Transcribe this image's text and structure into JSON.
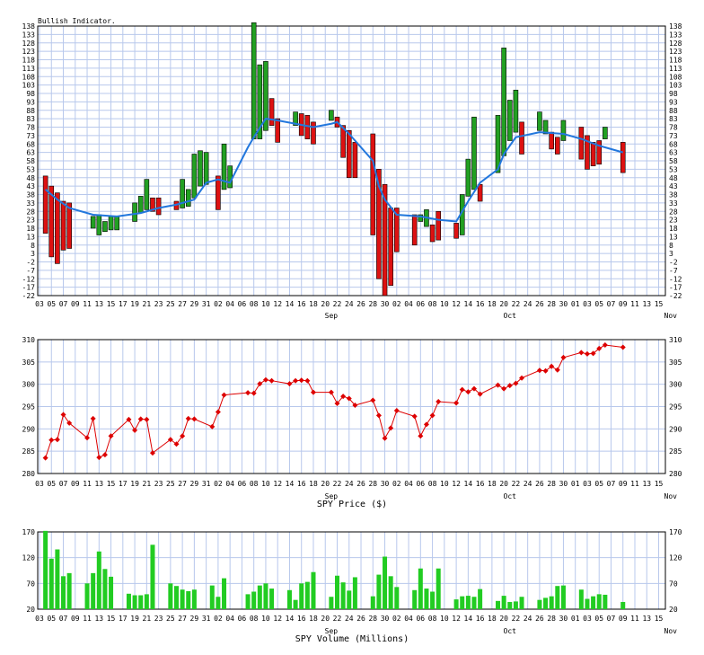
{
  "colors": {
    "up_bar": "#22a022",
    "down_bar": "#dd1111",
    "ma_line": "#2277dd",
    "price_line": "#dd0000",
    "volume_bar": "#22cc22",
    "grid": "#b8c8ec"
  },
  "chart_data": [
    {
      "type": "bar",
      "title": "Bullish Indicator.",
      "ylim": [
        -22,
        138
      ],
      "y_ticks": [
        138,
        133,
        128,
        123,
        118,
        113,
        108,
        103,
        98,
        93,
        88,
        83,
        78,
        73,
        68,
        63,
        58,
        53,
        48,
        43,
        38,
        33,
        28,
        23,
        18,
        13,
        8,
        3,
        -2,
        -7,
        -12,
        -17,
        -22
      ],
      "day_ticks": [
        "03",
        "05",
        "07",
        "09",
        "11",
        "13",
        "15",
        "17",
        "19",
        "21",
        "23",
        "25",
        "27",
        "29",
        "31",
        "02",
        "04",
        "06",
        "08",
        "10",
        "12",
        "14",
        "16",
        "18",
        "20",
        "22",
        "24",
        "26",
        "28",
        "30",
        "02",
        "04",
        "06",
        "08",
        "10",
        "12",
        "14",
        "16",
        "18",
        "20",
        "22",
        "24",
        "26",
        "28",
        "30",
        "01",
        "03",
        "05",
        "07",
        "09",
        "11",
        "13",
        "15"
      ],
      "month_labels": [
        "Sep",
        "Oct",
        "Nov"
      ],
      "bars": [
        {
          "x": 1,
          "o": 49,
          "c": 15
        },
        {
          "x": 2,
          "o": 43,
          "c": 1
        },
        {
          "x": 3,
          "o": 39,
          "c": -3
        },
        {
          "x": 4,
          "o": 34,
          "c": 5
        },
        {
          "x": 5,
          "o": 33,
          "c": 6
        },
        {
          "x": 9,
          "o": 18,
          "c": 25
        },
        {
          "x": 10,
          "o": 14,
          "c": 26
        },
        {
          "x": 11,
          "o": 16,
          "c": 22
        },
        {
          "x": 12,
          "o": 17,
          "c": 25
        },
        {
          "x": 13,
          "o": 17,
          "c": 25
        },
        {
          "x": 16,
          "o": 22,
          "c": 33
        },
        {
          "x": 17,
          "o": 27,
          "c": 37
        },
        {
          "x": 18,
          "o": 29,
          "c": 47
        },
        {
          "x": 19,
          "o": 36,
          "c": 28
        },
        {
          "x": 20,
          "o": 36,
          "c": 26
        },
        {
          "x": 23,
          "o": 34,
          "c": 29
        },
        {
          "x": 24,
          "o": 30,
          "c": 47
        },
        {
          "x": 25,
          "o": 31,
          "c": 41
        },
        {
          "x": 26,
          "o": 36,
          "c": 62
        },
        {
          "x": 27,
          "o": 43,
          "c": 64
        },
        {
          "x": 28,
          "o": 44,
          "c": 63
        },
        {
          "x": 30,
          "o": 49,
          "c": 29
        },
        {
          "x": 31,
          "o": 41,
          "c": 68
        },
        {
          "x": 32,
          "o": 42,
          "c": 55
        },
        {
          "x": 36,
          "o": 71,
          "c": 140
        },
        {
          "x": 37,
          "o": 71,
          "c": 115
        },
        {
          "x": 38,
          "o": 76,
          "c": 117
        },
        {
          "x": 39,
          "o": 95,
          "c": 79
        },
        {
          "x": 40,
          "o": 83,
          "c": 69
        },
        {
          "x": 43,
          "o": 79,
          "c": 87
        },
        {
          "x": 44,
          "o": 86,
          "c": 73
        },
        {
          "x": 45,
          "o": 85,
          "c": 71
        },
        {
          "x": 46,
          "o": 81,
          "c": 68
        },
        {
          "x": 49,
          "o": 82,
          "c": 88
        },
        {
          "x": 50,
          "o": 84,
          "c": 78
        },
        {
          "x": 51,
          "o": 79,
          "c": 60
        },
        {
          "x": 52,
          "o": 76,
          "c": 48
        },
        {
          "x": 53,
          "o": 69,
          "c": 48
        },
        {
          "x": 56,
          "o": 74,
          "c": 14
        },
        {
          "x": 57,
          "o": 53,
          "c": -12
        },
        {
          "x": 58,
          "o": 44,
          "c": -22
        },
        {
          "x": 59,
          "o": 30,
          "c": -16
        },
        {
          "x": 60,
          "o": 30,
          "c": 4
        },
        {
          "x": 63,
          "o": 26,
          "c": 8
        },
        {
          "x": 64,
          "o": 22,
          "c": 26
        },
        {
          "x": 65,
          "o": 19,
          "c": 29
        },
        {
          "x": 66,
          "o": 20,
          "c": 10
        },
        {
          "x": 67,
          "o": 28,
          "c": 11
        },
        {
          "x": 70,
          "o": 21,
          "c": 12
        },
        {
          "x": 71,
          "o": 14,
          "c": 38
        },
        {
          "x": 72,
          "o": 37,
          "c": 59
        },
        {
          "x": 73,
          "o": 41,
          "c": 84
        },
        {
          "x": 74,
          "o": 44,
          "c": 34
        },
        {
          "x": 77,
          "o": 51,
          "c": 85
        },
        {
          "x": 78,
          "o": 61,
          "c": 125
        },
        {
          "x": 79,
          "o": 70,
          "c": 94
        },
        {
          "x": 80,
          "o": 75,
          "c": 100
        },
        {
          "x": 81,
          "o": 81,
          "c": 62
        },
        {
          "x": 84,
          "o": 76,
          "c": 87
        },
        {
          "x": 85,
          "o": 74,
          "c": 82
        },
        {
          "x": 86,
          "o": 75,
          "c": 65
        },
        {
          "x": 87,
          "o": 72,
          "c": 62
        },
        {
          "x": 88,
          "o": 70,
          "c": 82
        },
        {
          "x": 91,
          "o": 78,
          "c": 59
        },
        {
          "x": 92,
          "o": 73,
          "c": 53
        },
        {
          "x": 93,
          "o": 69,
          "c": 55
        },
        {
          "x": 94,
          "o": 70,
          "c": 56
        },
        {
          "x": 95,
          "o": 71,
          "c": 78
        },
        {
          "x": 98,
          "o": 69,
          "c": 51
        }
      ],
      "ma_line": [
        {
          "x": 1,
          "y": 41
        },
        {
          "x": 3,
          "y": 35
        },
        {
          "x": 5,
          "y": 30
        },
        {
          "x": 9,
          "y": 26
        },
        {
          "x": 13,
          "y": 25
        },
        {
          "x": 17,
          "y": 27
        },
        {
          "x": 20,
          "y": 30
        },
        {
          "x": 23,
          "y": 32
        },
        {
          "x": 26,
          "y": 35
        },
        {
          "x": 28,
          "y": 45
        },
        {
          "x": 30,
          "y": 47
        },
        {
          "x": 32,
          "y": 45
        },
        {
          "x": 35,
          "y": 66
        },
        {
          "x": 36,
          "y": 72
        },
        {
          "x": 38,
          "y": 83
        },
        {
          "x": 40,
          "y": 82
        },
        {
          "x": 43,
          "y": 80
        },
        {
          "x": 46,
          "y": 78
        },
        {
          "x": 49,
          "y": 80
        },
        {
          "x": 50,
          "y": 81
        },
        {
          "x": 52,
          "y": 74
        },
        {
          "x": 56,
          "y": 58
        },
        {
          "x": 57,
          "y": 43
        },
        {
          "x": 58,
          "y": 35
        },
        {
          "x": 60,
          "y": 26
        },
        {
          "x": 64,
          "y": 25
        },
        {
          "x": 67,
          "y": 23
        },
        {
          "x": 70,
          "y": 22
        },
        {
          "x": 72,
          "y": 34
        },
        {
          "x": 74,
          "y": 45
        },
        {
          "x": 77,
          "y": 53
        },
        {
          "x": 78,
          "y": 62
        },
        {
          "x": 80,
          "y": 72
        },
        {
          "x": 84,
          "y": 75
        },
        {
          "x": 88,
          "y": 74
        },
        {
          "x": 91,
          "y": 71
        },
        {
          "x": 94,
          "y": 67
        },
        {
          "x": 98,
          "y": 63
        }
      ]
    },
    {
      "type": "line",
      "title": "SPY Price ($)",
      "ylim": [
        280,
        310
      ],
      "y_ticks": [
        310,
        305,
        300,
        295,
        290,
        285,
        280
      ],
      "day_ticks": [
        "03",
        "05",
        "07",
        "09",
        "11",
        "13",
        "15",
        "17",
        "19",
        "21",
        "23",
        "25",
        "27",
        "29",
        "31",
        "02",
        "04",
        "06",
        "08",
        "10",
        "12",
        "14",
        "16",
        "18",
        "20",
        "22",
        "24",
        "26",
        "28",
        "30",
        "02",
        "04",
        "06",
        "08",
        "10",
        "12",
        "14",
        "16",
        "18",
        "20",
        "22",
        "24",
        "26",
        "28",
        "30",
        "01",
        "03",
        "05",
        "07",
        "09",
        "11",
        "13",
        "15"
      ],
      "month_labels": [
        "Sep",
        "Oct",
        "Nov"
      ],
      "points": [
        {
          "x": 1,
          "y": 283.5
        },
        {
          "x": 2,
          "y": 287.5
        },
        {
          "x": 3,
          "y": 287.6
        },
        {
          "x": 4,
          "y": 293.2
        },
        {
          "x": 5,
          "y": 291.3
        },
        {
          "x": 8,
          "y": 288.0
        },
        {
          "x": 9,
          "y": 292.3
        },
        {
          "x": 10,
          "y": 283.6
        },
        {
          "x": 11,
          "y": 284.2
        },
        {
          "x": 12,
          "y": 288.4
        },
        {
          "x": 15,
          "y": 292.1
        },
        {
          "x": 16,
          "y": 289.7
        },
        {
          "x": 17,
          "y": 292.2
        },
        {
          "x": 18,
          "y": 292.1
        },
        {
          "x": 19,
          "y": 284.6
        },
        {
          "x": 22,
          "y": 287.6
        },
        {
          "x": 23,
          "y": 286.6
        },
        {
          "x": 24,
          "y": 288.4
        },
        {
          "x": 25,
          "y": 292.3
        },
        {
          "x": 26,
          "y": 292.2
        },
        {
          "x": 29,
          "y": 290.5
        },
        {
          "x": 30,
          "y": 293.8
        },
        {
          "x": 31,
          "y": 297.6
        },
        {
          "x": 35,
          "y": 298.1
        },
        {
          "x": 36,
          "y": 298.0
        },
        {
          "x": 37,
          "y": 300.1
        },
        {
          "x": 38,
          "y": 301.0
        },
        {
          "x": 39,
          "y": 300.8
        },
        {
          "x": 42,
          "y": 300.1
        },
        {
          "x": 43,
          "y": 300.8
        },
        {
          "x": 44,
          "y": 300.9
        },
        {
          "x": 45,
          "y": 300.8
        },
        {
          "x": 46,
          "y": 298.2
        },
        {
          "x": 49,
          "y": 298.2
        },
        {
          "x": 50,
          "y": 295.7
        },
        {
          "x": 51,
          "y": 297.3
        },
        {
          "x": 52,
          "y": 296.8
        },
        {
          "x": 53,
          "y": 295.3
        },
        {
          "x": 56,
          "y": 296.4
        },
        {
          "x": 57,
          "y": 293.0
        },
        {
          "x": 58,
          "y": 287.9
        },
        {
          "x": 59,
          "y": 290.2
        },
        {
          "x": 60,
          "y": 294.1
        },
        {
          "x": 63,
          "y": 292.8
        },
        {
          "x": 64,
          "y": 288.4
        },
        {
          "x": 65,
          "y": 291.0
        },
        {
          "x": 66,
          "y": 293.0
        },
        {
          "x": 67,
          "y": 296.1
        },
        {
          "x": 70,
          "y": 295.8
        },
        {
          "x": 71,
          "y": 298.8
        },
        {
          "x": 72,
          "y": 298.3
        },
        {
          "x": 73,
          "y": 299.0
        },
        {
          "x": 74,
          "y": 297.8
        },
        {
          "x": 77,
          "y": 299.8
        },
        {
          "x": 78,
          "y": 299.0
        },
        {
          "x": 79,
          "y": 299.7
        },
        {
          "x": 80,
          "y": 300.2
        },
        {
          "x": 81,
          "y": 301.4
        },
        {
          "x": 84,
          "y": 303.1
        },
        {
          "x": 85,
          "y": 303.0
        },
        {
          "x": 86,
          "y": 304.0
        },
        {
          "x": 87,
          "y": 303.2
        },
        {
          "x": 88,
          "y": 306.0
        },
        {
          "x": 91,
          "y": 307.1
        },
        {
          "x": 92,
          "y": 306.8
        },
        {
          "x": 93,
          "y": 306.9
        },
        {
          "x": 94,
          "y": 308.0
        },
        {
          "x": 95,
          "y": 308.8
        },
        {
          "x": 98,
          "y": 308.3
        }
      ]
    },
    {
      "type": "bar",
      "title": "SPY Volume (Millions)",
      "ylim": [
        20,
        170
      ],
      "y_ticks": [
        170,
        120,
        70,
        20
      ],
      "day_ticks": [
        "03",
        "05",
        "07",
        "09",
        "11",
        "13",
        "15",
        "17",
        "19",
        "21",
        "23",
        "25",
        "27",
        "29",
        "31",
        "02",
        "04",
        "06",
        "08",
        "10",
        "12",
        "14",
        "16",
        "18",
        "20",
        "22",
        "24",
        "26",
        "28",
        "30",
        "02",
        "04",
        "06",
        "08",
        "10",
        "12",
        "14",
        "16",
        "18",
        "20",
        "22",
        "24",
        "26",
        "28",
        "30",
        "01",
        "03",
        "05",
        "07",
        "09",
        "11",
        "13",
        "15"
      ],
      "month_labels": [
        "Sep",
        "Oct",
        "Nov"
      ],
      "bars": [
        {
          "x": 1,
          "v": 172
        },
        {
          "x": 2,
          "v": 118
        },
        {
          "x": 3,
          "v": 136
        },
        {
          "x": 4,
          "v": 84
        },
        {
          "x": 5,
          "v": 90
        },
        {
          "x": 8,
          "v": 70
        },
        {
          "x": 9,
          "v": 90
        },
        {
          "x": 10,
          "v": 132
        },
        {
          "x": 11,
          "v": 98
        },
        {
          "x": 12,
          "v": 83
        },
        {
          "x": 15,
          "v": 50
        },
        {
          "x": 16,
          "v": 47
        },
        {
          "x": 17,
          "v": 47
        },
        {
          "x": 18,
          "v": 49
        },
        {
          "x": 19,
          "v": 145
        },
        {
          "x": 22,
          "v": 70
        },
        {
          "x": 23,
          "v": 65
        },
        {
          "x": 24,
          "v": 58
        },
        {
          "x": 25,
          "v": 55
        },
        {
          "x": 26,
          "v": 58
        },
        {
          "x": 29,
          "v": 66
        },
        {
          "x": 30,
          "v": 44
        },
        {
          "x": 31,
          "v": 80
        },
        {
          "x": 35,
          "v": 49
        },
        {
          "x": 36,
          "v": 54
        },
        {
          "x": 37,
          "v": 66
        },
        {
          "x": 38,
          "v": 70
        },
        {
          "x": 39,
          "v": 60
        },
        {
          "x": 42,
          "v": 57
        },
        {
          "x": 43,
          "v": 38
        },
        {
          "x": 44,
          "v": 70
        },
        {
          "x": 45,
          "v": 73
        },
        {
          "x": 46,
          "v": 92
        },
        {
          "x": 49,
          "v": 44
        },
        {
          "x": 50,
          "v": 85
        },
        {
          "x": 51,
          "v": 72
        },
        {
          "x": 52,
          "v": 56
        },
        {
          "x": 53,
          "v": 82
        },
        {
          "x": 56,
          "v": 45
        },
        {
          "x": 57,
          "v": 87
        },
        {
          "x": 58,
          "v": 122
        },
        {
          "x": 59,
          "v": 84
        },
        {
          "x": 60,
          "v": 63
        },
        {
          "x": 63,
          "v": 57
        },
        {
          "x": 64,
          "v": 99
        },
        {
          "x": 65,
          "v": 60
        },
        {
          "x": 66,
          "v": 54
        },
        {
          "x": 67,
          "v": 99
        },
        {
          "x": 70,
          "v": 39
        },
        {
          "x": 71,
          "v": 45
        },
        {
          "x": 72,
          "v": 46
        },
        {
          "x": 73,
          "v": 44
        },
        {
          "x": 74,
          "v": 59
        },
        {
          "x": 77,
          "v": 36
        },
        {
          "x": 78,
          "v": 46
        },
        {
          "x": 79,
          "v": 34
        },
        {
          "x": 80,
          "v": 35
        },
        {
          "x": 81,
          "v": 44
        },
        {
          "x": 84,
          "v": 38
        },
        {
          "x": 85,
          "v": 42
        },
        {
          "x": 86,
          "v": 45
        },
        {
          "x": 87,
          "v": 65
        },
        {
          "x": 88,
          "v": 66
        },
        {
          "x": 91,
          "v": 58
        },
        {
          "x": 92,
          "v": 40
        },
        {
          "x": 93,
          "v": 45
        },
        {
          "x": 94,
          "v": 49
        },
        {
          "x": 95,
          "v": 48
        },
        {
          "x": 98,
          "v": 34
        }
      ]
    }
  ]
}
